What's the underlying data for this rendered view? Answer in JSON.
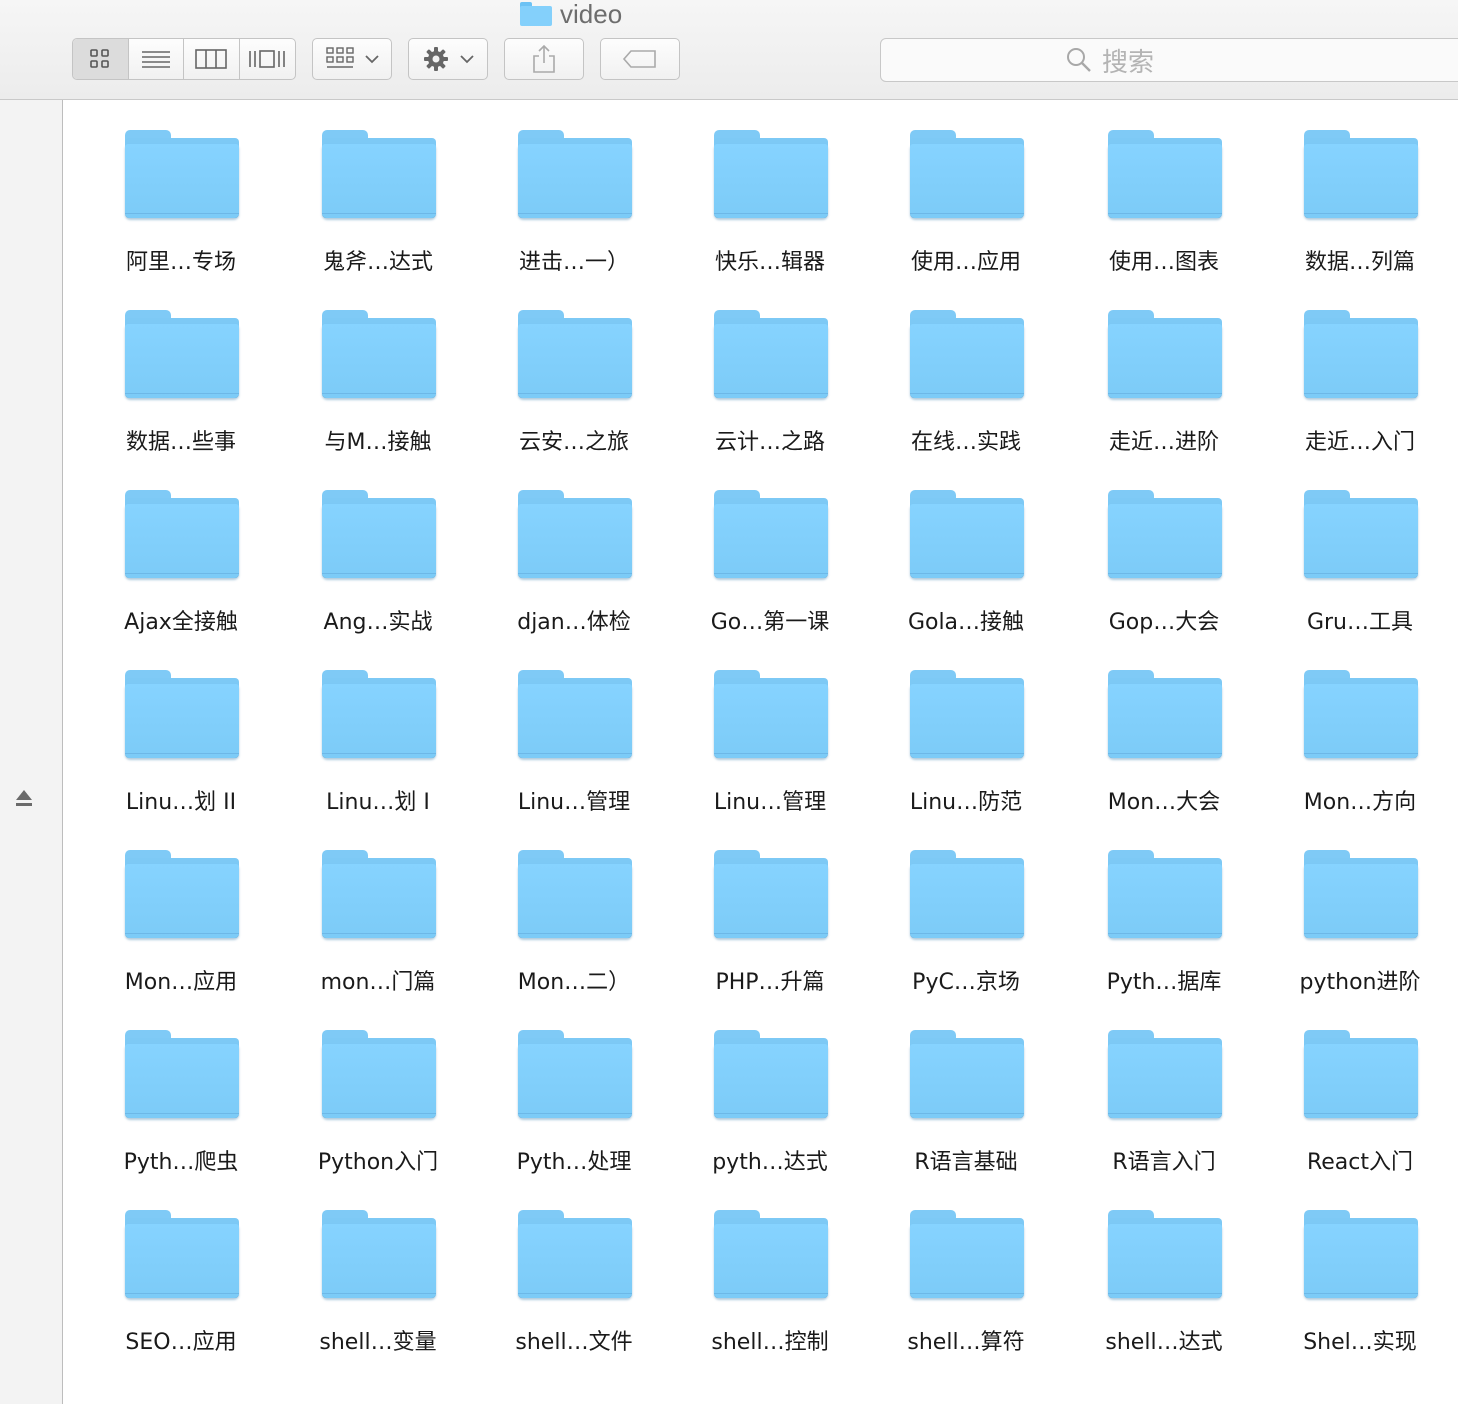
{
  "window": {
    "title": "video"
  },
  "toolbar": {
    "view_buttons": [
      "icon-view",
      "list-view",
      "column-view",
      "cover-flow-view"
    ],
    "arrange_icon": "grid-arrange-icon",
    "action_icon": "gear-icon",
    "share_icon": "share-icon",
    "tag_icon": "tag-icon"
  },
  "search": {
    "placeholder": "搜索",
    "icon": "search-icon"
  },
  "sidebar": {
    "eject_icon": "eject-icon"
  },
  "colors": {
    "folder": "#84d0fb",
    "folder_tab": "#7fcaf6",
    "toolbar_bg": "#ececec"
  },
  "folders": [
    [
      "阿里…专场",
      "鬼斧…达式",
      "进击…一）",
      "快乐…辑器",
      "使用…应用",
      "使用…图表",
      "数据…列篇"
    ],
    [
      "数据…些事",
      "与M…接触",
      "云安…之旅",
      "云计…之路",
      "在线…实践",
      "走近…进阶",
      "走近…入门"
    ],
    [
      "Ajax全接触",
      "Ang…实战",
      "djan…体检",
      "Go…第一课",
      "Gola…接触",
      "Gop…大会",
      "Gru…工具"
    ],
    [
      "Linu…划 II",
      "Linu…划 I",
      "Linu…管理",
      "Linu…管理",
      "Linu…防范",
      "Mon…大会",
      "Mon…方向"
    ],
    [
      "Mon…应用",
      "mon…门篇",
      "Mon…二）",
      "PHP…升篇",
      "PyC…京场",
      "Pyth…据库",
      "python进阶"
    ],
    [
      "Pyth…爬虫",
      "Python入门",
      "Pyth…处理",
      "pyth…达式",
      "R语言基础",
      "R语言入门",
      "React入门"
    ],
    [
      "SEO…应用",
      "shell…变量",
      "shell…文件",
      "shell…控制",
      "shell…算符",
      "shell…达式",
      "Shel…实现"
    ]
  ]
}
